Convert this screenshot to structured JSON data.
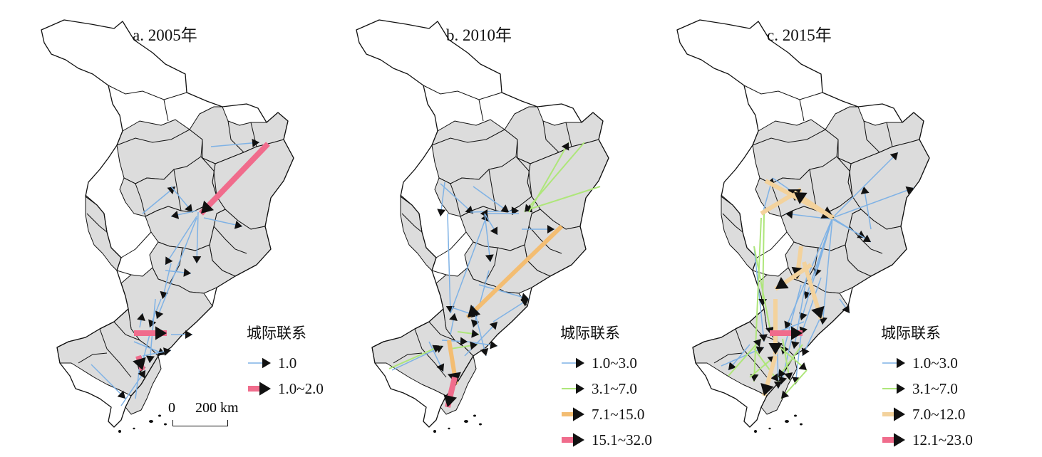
{
  "panels": [
    {
      "id": "a",
      "title": "a. 2005年",
      "legend": {
        "title": "城际联系",
        "items": [
          {
            "label": "1.0",
            "color": "#7fb2e5",
            "width": 1.5
          },
          {
            "label": "1.0~2.0",
            "color": "#f06c8c",
            "width": 8
          }
        ]
      },
      "scale_bar": {
        "zero": "0",
        "distance": "200 km"
      }
    },
    {
      "id": "b",
      "title": "b. 2010年",
      "legend": {
        "title": "城际联系",
        "items": [
          {
            "label": "1.0~3.0",
            "color": "#7fb2e5",
            "width": 1.5
          },
          {
            "label": "3.1~7.0",
            "color": "#aee67a",
            "width": 2
          },
          {
            "label": "7.1~15.0",
            "color": "#f3bd72",
            "width": 6
          },
          {
            "label": "15.1~32.0",
            "color": "#f06c8c",
            "width": 8
          }
        ]
      }
    },
    {
      "id": "c",
      "title": "c. 2015年",
      "legend": {
        "title": "城际联系",
        "items": [
          {
            "label": "1.0~3.0",
            "color": "#7fb2e5",
            "width": 1.5
          },
          {
            "label": "3.1~7.0",
            "color": "#aee67a",
            "width": 2
          },
          {
            "label": "7.0~12.0",
            "color": "#f3d29c",
            "width": 6
          },
          {
            "label": "12.1~23.0",
            "color": "#f06c8c",
            "width": 8
          }
        ]
      }
    }
  ],
  "colors": {
    "region_fill": "#dcdcdc",
    "border": "#111111",
    "background": "#ffffff"
  }
}
